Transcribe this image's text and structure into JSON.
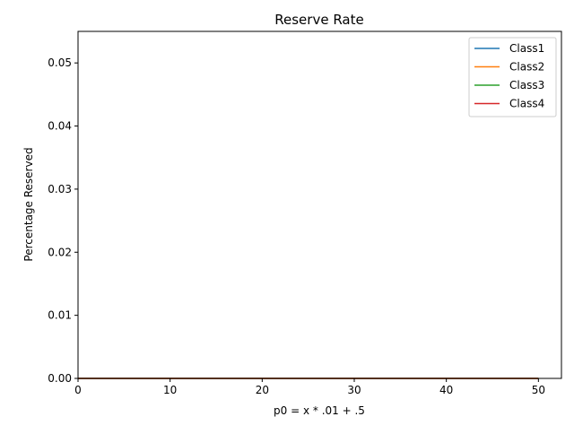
{
  "chart_data": {
    "type": "line",
    "title": "Reserve Rate",
    "xlabel": "p0 = x * .01 + .5",
    "ylabel": "Percentage Reserved",
    "xlim": [
      0,
      52.5
    ],
    "ylim": [
      0,
      0.055
    ],
    "x_ticks": [
      0,
      10,
      20,
      30,
      40,
      50
    ],
    "x_tick_labels": [
      "0",
      "10",
      "20",
      "30",
      "40",
      "50"
    ],
    "y_ticks": [
      0,
      0.01,
      0.02,
      0.03,
      0.04,
      0.05
    ],
    "y_tick_labels": [
      "0.00",
      "0.01",
      "0.02",
      "0.03",
      "0.04",
      "0.05"
    ],
    "grid": false,
    "legend_position": "top-right",
    "x": [
      0,
      50
    ],
    "series": [
      {
        "name": "Class1",
        "color": "#1f77b4",
        "values": [
          0,
          0
        ]
      },
      {
        "name": "Class2",
        "color": "#ff7f0e",
        "values": [
          0,
          0
        ]
      },
      {
        "name": "Class3",
        "color": "#2ca02c",
        "values": [
          0,
          0
        ]
      },
      {
        "name": "Class4",
        "color": "#d62728",
        "values": [
          0,
          0
        ]
      }
    ]
  }
}
